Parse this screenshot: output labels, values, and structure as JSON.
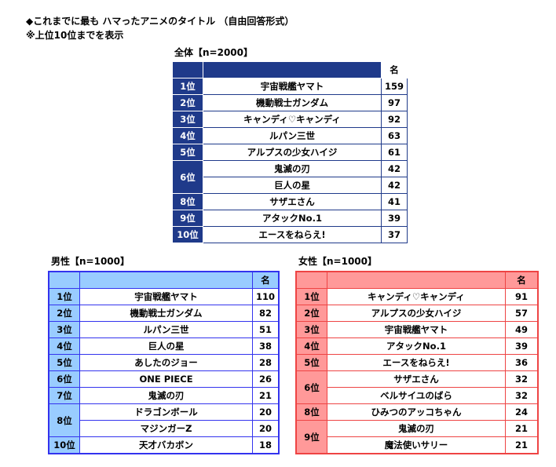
{
  "title": "◆これまでに最も ハマったアニメのタイトル （自由回答形式）",
  "note": "※上位10位までを表示",
  "count_header": "名",
  "tables": {
    "all": {
      "label": "全体【n=2000】",
      "rows": [
        {
          "rank": "1位",
          "title": "宇宙戦艦ヤマト",
          "count": "159"
        },
        {
          "rank": "2位",
          "title": "機動戦士ガンダム",
          "count": "97"
        },
        {
          "rank": "3位",
          "title": "キャンディ♡キャンディ",
          "count": "92"
        },
        {
          "rank": "4位",
          "title": "ルパン三世",
          "count": "63"
        },
        {
          "rank": "5位",
          "title": "アルプスの少女ハイジ",
          "count": "61"
        },
        {
          "rank": "6位",
          "title": "鬼滅の刃",
          "count": "42"
        },
        {
          "rank": "6位",
          "title": "巨人の星",
          "count": "42"
        },
        {
          "rank": "8位",
          "title": "サザエさん",
          "count": "41"
        },
        {
          "rank": "9位",
          "title": "アタックNo.1",
          "count": "39"
        },
        {
          "rank": "10位",
          "title": "エースをねらえ!",
          "count": "37"
        }
      ]
    },
    "male": {
      "label": "男性【n=1000】",
      "rows": [
        {
          "rank": "1位",
          "title": "宇宙戦艦ヤマト",
          "count": "110"
        },
        {
          "rank": "2位",
          "title": "機動戦士ガンダム",
          "count": "82"
        },
        {
          "rank": "3位",
          "title": "ルパン三世",
          "count": "51"
        },
        {
          "rank": "4位",
          "title": "巨人の星",
          "count": "38"
        },
        {
          "rank": "5位",
          "title": "あしたのジョー",
          "count": "28"
        },
        {
          "rank": "6位",
          "title": "ONE PIECE",
          "count": "26"
        },
        {
          "rank": "7位",
          "title": "鬼滅の刃",
          "count": "21"
        },
        {
          "rank": "8位",
          "title": "ドラゴンボール",
          "count": "20"
        },
        {
          "rank": "8位",
          "title": "マジンガーZ",
          "count": "20"
        },
        {
          "rank": "10位",
          "title": "天才バカボン",
          "count": "18"
        }
      ]
    },
    "female": {
      "label": "女性【n=1000】",
      "rows": [
        {
          "rank": "1位",
          "title": "キャンディ♡キャンディ",
          "count": "91"
        },
        {
          "rank": "2位",
          "title": "アルプスの少女ハイジ",
          "count": "57"
        },
        {
          "rank": "3位",
          "title": "宇宙戦艦ヤマト",
          "count": "49"
        },
        {
          "rank": "4位",
          "title": "アタックNo.1",
          "count": "39"
        },
        {
          "rank": "5位",
          "title": "エースをねらえ!",
          "count": "36"
        },
        {
          "rank": "6位",
          "title": "サザエさん",
          "count": "32"
        },
        {
          "rank": "6位",
          "title": "ベルサイユのばら",
          "count": "32"
        },
        {
          "rank": "8位",
          "title": "ひみつのアッコちゃん",
          "count": "24"
        },
        {
          "rank": "9位",
          "title": "鬼滅の刃",
          "count": "21"
        },
        {
          "rank": "9位",
          "title": "魔法使いサリー",
          "count": "21"
        }
      ]
    }
  },
  "colors": {
    "all": "#1f3a8a",
    "male_fill": "#99ccff",
    "male_border": "#3333ee",
    "female_fill": "#ff9999",
    "female_border": "#ee4444"
  }
}
